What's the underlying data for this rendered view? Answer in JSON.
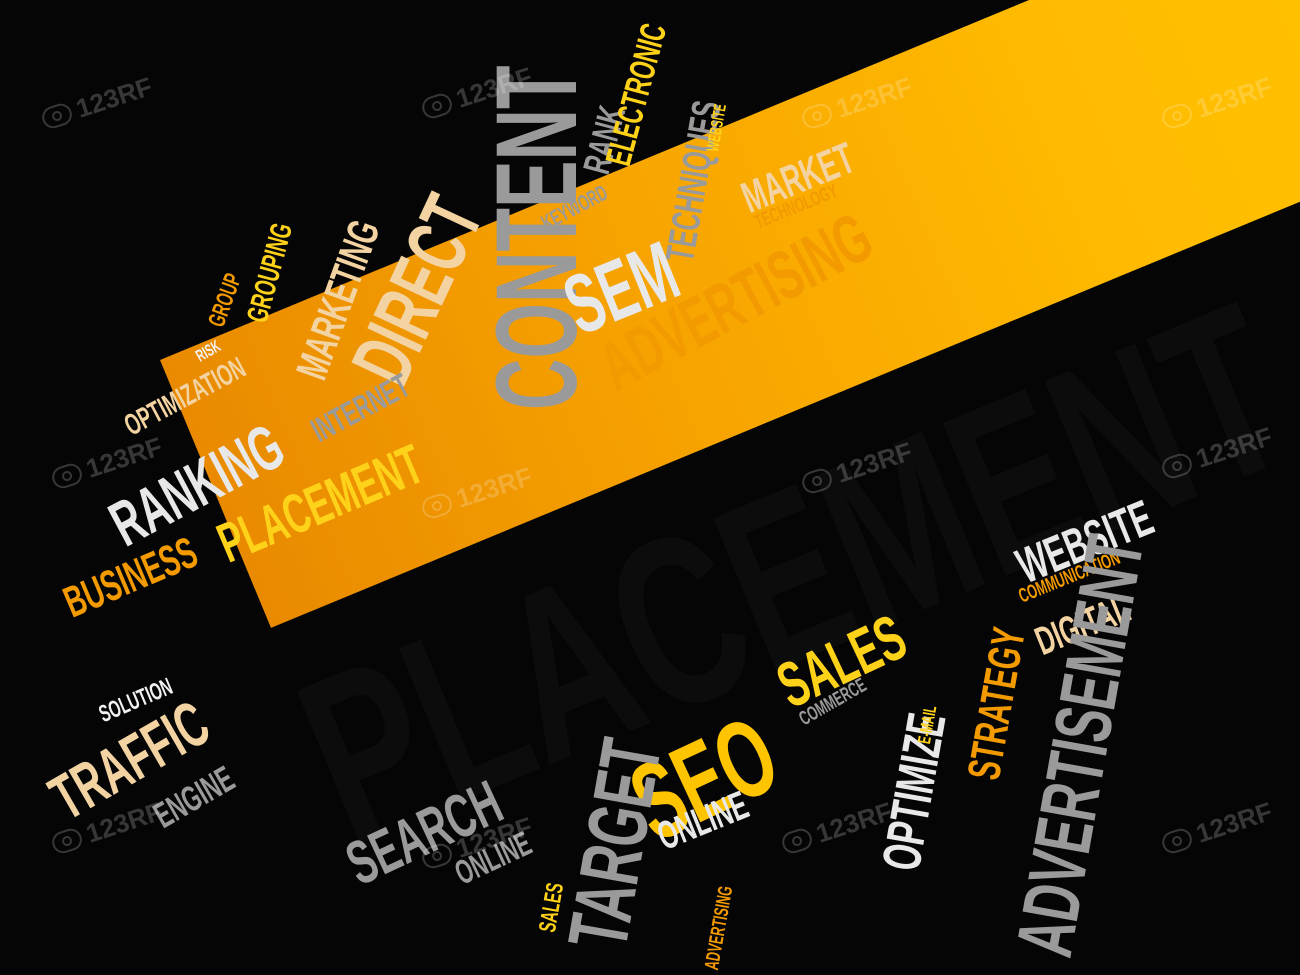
{
  "main_word": "PLACEMENT",
  "watermark": "123RF",
  "colors": {
    "background": "#050505",
    "band_start": "#e98a00",
    "band_end": "#ffc300",
    "main_text": "#0c0c0c",
    "white": "#f2f2f2",
    "gray": "#9a9a9a",
    "orange": "#f29a00",
    "yellow": "#ffd21a",
    "beige": "#f3d3a1"
  },
  "words": {
    "content": "CONTENT",
    "direct": "DIRECT",
    "marketing": "MARKETING",
    "grouping": "GROUPING",
    "risk": "RISK",
    "group": "GROUP",
    "optimization": "OPTIMIZATION",
    "ranking": "RANKING",
    "internet": "INTERNET",
    "placement_small": "PLACEMENT",
    "business": "BUSINESS",
    "keyword": "KEYWORD",
    "rank": "RANK",
    "electronic": "ELECTRONIC",
    "techniques": "TECHNIQUES",
    "website_small": "WEBSITE",
    "market": "MARKET",
    "technology": "TECHNOLOGY",
    "sem": "SEM",
    "advertising": "ADVERTISING",
    "website": "WEBSITE",
    "communication": "COMMUNICATION",
    "digital": "DIGITAL",
    "advertisement": "ADVERTISEMENT",
    "strategy": "STRATEGY",
    "optimize": "OPTIMIZE",
    "email": "E-MAIL",
    "commerce": "COMMERCE",
    "sales": "SALES",
    "seo": "SEO",
    "online": "ONLINE",
    "target": "TARGET",
    "search": "SEARCH",
    "online2": "ONLINE",
    "sales_small": "SALES",
    "advertising_small": "ADVERTISING",
    "solution": "SOLUTION",
    "traffic": "TRAFFIC",
    "engine": "ENGINE"
  }
}
